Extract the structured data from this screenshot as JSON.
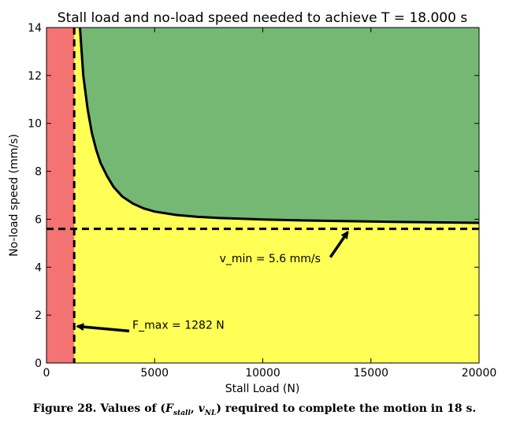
{
  "chart_data": {
    "type": "area",
    "title": "Stall load and no-load speed needed to achieve T = 18.000 s",
    "xlabel": "Stall Load (N)",
    "ylabel": "No-load speed (mm/s)",
    "xlim": [
      0,
      20000
    ],
    "ylim": [
      0,
      14
    ],
    "xticks": [
      0,
      5000,
      10000,
      15000,
      20000
    ],
    "yticks": [
      0,
      2,
      4,
      6,
      8,
      10,
      12,
      14
    ],
    "grid": false,
    "F_max": 1282,
    "v_min": 5.6,
    "boundary_curve": {
      "x": [
        1550,
        1700,
        1900,
        2100,
        2300,
        2500,
        2800,
        3100,
        3500,
        4000,
        4500,
        5000,
        6000,
        7000,
        8000,
        9000,
        10000,
        12000,
        14000,
        16000,
        18000,
        20000
      ],
      "y": [
        14.0,
        12.0,
        10.6,
        9.6,
        8.9,
        8.35,
        7.8,
        7.35,
        6.95,
        6.65,
        6.45,
        6.32,
        6.18,
        6.1,
        6.05,
        6.02,
        5.99,
        5.95,
        5.92,
        5.89,
        5.87,
        5.85
      ]
    },
    "regions": [
      {
        "label": "infeasible-force",
        "color": "#f47373"
      },
      {
        "label": "infeasible-speed",
        "color": "#ffff55"
      },
      {
        "label": "feasible",
        "color": "#74b874"
      }
    ],
    "annotations": [
      {
        "text": "v_min = 5.6 mm/s",
        "x": 8000,
        "y": 4.2,
        "arrow_to": [
          14000,
          5.6
        ]
      },
      {
        "text": "F_max = 1282 N",
        "x": 3900,
        "y": 1.3,
        "arrow_to": [
          1282,
          1.4
        ]
      }
    ]
  },
  "caption": {
    "prefix": "Figure 28. Values of (",
    "F": "F",
    "F_sub": "stall",
    "sep": ", ",
    "v": "v",
    "v_sub": "NL",
    "suffix": ") required to complete the motion in 18 s."
  }
}
